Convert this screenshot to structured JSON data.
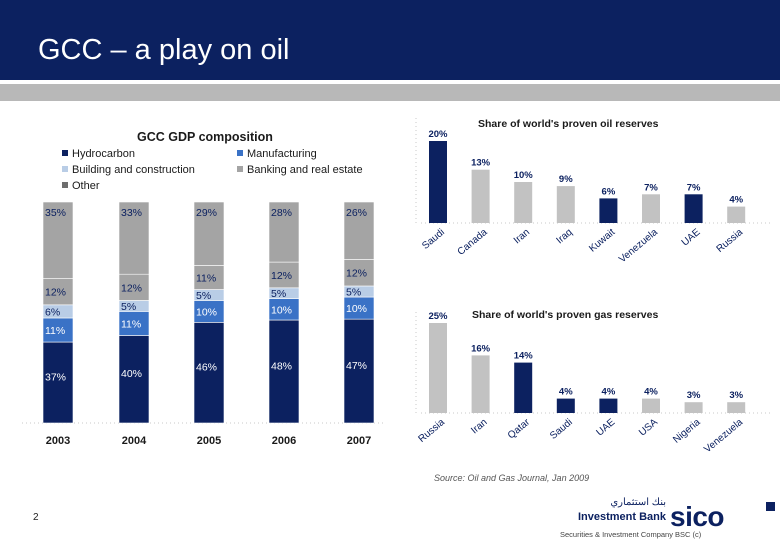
{
  "slide": {
    "title": "GCC – a play on oil",
    "page_number": "2",
    "source": "Source: Oil and Gas Journal, Jan 2009",
    "footer": "Securities & Investment Company BSC (c)",
    "logo_word": "sico",
    "logo_sub": "Investment Bank",
    "logo_arabic": "بنك استثماري"
  },
  "colors": {
    "navy": "#0c2160",
    "blue": "#3a72c6",
    "lightblue": "#b9cde6",
    "grey": "#a4a4a4",
    "lightgrey": "#c2c2c2",
    "band": "#b8b8b8"
  },
  "chart_data": [
    {
      "type": "bar",
      "stacked": true,
      "title": "GCC GDP composition",
      "categories": [
        "2003",
        "2004",
        "2005",
        "2006",
        "2007"
      ],
      "series": [
        {
          "name": "Hydrocarbon",
          "color": "#0c2160",
          "values": [
            37,
            40,
            46,
            48,
            47
          ],
          "labels": [
            "37%",
            "40%",
            "46%",
            "48%",
            "47%"
          ]
        },
        {
          "name": "Manufacturing",
          "color": "#3a72c6",
          "values": [
            11,
            11,
            10,
            10,
            10
          ],
          "labels": [
            "11%",
            "11%",
            "10%",
            "10%",
            "10%"
          ]
        },
        {
          "name": "Building and construction",
          "color": "#b9cde6",
          "values": [
            6,
            5,
            5,
            5,
            5
          ],
          "labels": [
            "6%",
            "5%",
            "5%",
            "5%",
            "5%"
          ]
        },
        {
          "name": "Banking and real estate",
          "color": "#a4a4a4",
          "values": [
            12,
            12,
            11,
            12,
            12
          ],
          "labels": [
            "12%",
            "12%",
            "11%",
            "12%",
            "12%"
          ]
        },
        {
          "name": "Other",
          "color": "#a4a4a4",
          "values": [
            35,
            33,
            29,
            28,
            26
          ],
          "labels": [
            "35%",
            "33%",
            "29%",
            "28%",
            "26%"
          ]
        }
      ],
      "legend": [
        "Hydrocarbon",
        "Manufacturing",
        "Building and construction",
        "Banking and real estate",
        "Other"
      ],
      "legend_position": "top"
    },
    {
      "type": "bar",
      "title": "Share of world's proven oil reserves",
      "categories": [
        "Saudi",
        "Canada",
        "Iran",
        "Iraq",
        "Kuwait",
        "Venezuela",
        "UAE",
        "Russia"
      ],
      "values": [
        20,
        13,
        10,
        9,
        6,
        7,
        7,
        4
      ],
      "labels": [
        "20%",
        "13%",
        "10%",
        "9%",
        "6%",
        "7%",
        "7%",
        "4%"
      ],
      "gcc": [
        true,
        false,
        false,
        false,
        true,
        false,
        true,
        false
      ]
    },
    {
      "type": "bar",
      "title": "Share of world's proven gas reserves",
      "categories": [
        "Russia",
        "Iran",
        "Qatar",
        "Saudi",
        "UAE",
        "USA",
        "Nigeria",
        "Venezuela"
      ],
      "values": [
        25,
        16,
        14,
        4,
        4,
        4,
        3,
        3
      ],
      "labels": [
        "25%",
        "16%",
        "14%",
        "4%",
        "4%",
        "4%",
        "3%",
        "3%"
      ],
      "gcc": [
        false,
        false,
        true,
        true,
        true,
        false,
        false,
        false
      ]
    }
  ]
}
